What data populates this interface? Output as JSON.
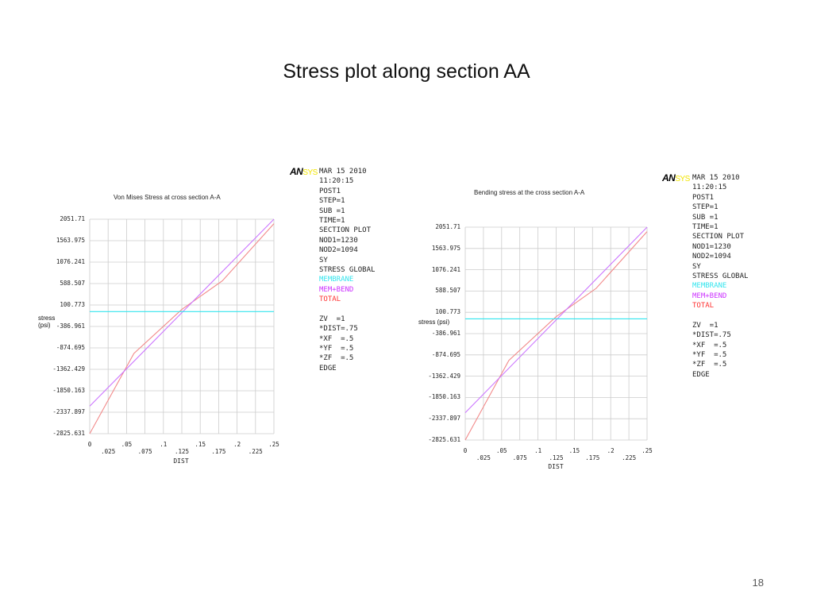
{
  "slide": {
    "title": "Stress plot along section AA",
    "page_number": "18"
  },
  "colors": {
    "total": "#f28a8a",
    "mem_bend": "#cc77ff",
    "membrane": "#33e5ee",
    "grid": "#cccccc",
    "logo_sys": "#f2e500"
  },
  "logo": {
    "an": "AN",
    "sys": "SYS"
  },
  "info_panel": {
    "lines": [
      {
        "text": "MAR 15 2010",
        "color": "#222222"
      },
      {
        "text": "11:20:15",
        "color": "#222222"
      },
      {
        "text": "POST1",
        "color": "#222222"
      },
      {
        "text": "STEP=1",
        "color": "#222222"
      },
      {
        "text": "SUB =1",
        "color": "#222222"
      },
      {
        "text": "TIME=1",
        "color": "#222222"
      },
      {
        "text": "SECTION PLOT",
        "color": "#222222"
      },
      {
        "text": "NOD1=1230",
        "color": "#222222"
      },
      {
        "text": "NOD2=1094",
        "color": "#222222"
      },
      {
        "text": "SY",
        "color": "#222222"
      },
      {
        "text": "STRESS GLOBAL",
        "color": "#222222"
      },
      {
        "text": "MEMBRANE",
        "color": "#33e5ee"
      },
      {
        "text": "MEM+BEND",
        "color": "#cc33ff"
      },
      {
        "text": "TOTAL",
        "color": "#ff3333"
      },
      {
        "text": "",
        "color": "#222222"
      },
      {
        "text": "ZV  =1",
        "color": "#222222"
      },
      {
        "text": "*DIST=.75",
        "color": "#222222"
      },
      {
        "text": "*XF  =.5",
        "color": "#222222"
      },
      {
        "text": "*YF  =.5",
        "color": "#222222"
      },
      {
        "text": "*ZF  =.5",
        "color": "#222222"
      },
      {
        "text": "EDGE",
        "color": "#222222"
      }
    ]
  },
  "chart_data": [
    {
      "type": "line",
      "title": "Von Mises Stress at cross section A-A",
      "xlabel": "DIST",
      "ylabel": "stress (psi)",
      "xlim": [
        0,
        0.25
      ],
      "ylim": [
        -2825.631,
        2051.71
      ],
      "grid": true,
      "x_ticks": [
        "0",
        ".025",
        ".05",
        ".075",
        ".1",
        ".125",
        ".15",
        ".175",
        ".2",
        ".225",
        ".25"
      ],
      "y_ticks": [
        "2051.71",
        "1563.975",
        "1076.241",
        "588.507",
        "100.773",
        "-386.961",
        "-874.695",
        "-1362.429",
        "-1850.163",
        "-2337.897",
        "-2825.631"
      ],
      "series": [
        {
          "name": "TOTAL",
          "color": "#f28a8a",
          "x": [
            0,
            0.06,
            0.125,
            0.18,
            0.25
          ],
          "y": [
            -2825.631,
            -1000,
            0,
            650,
            1950
          ]
        },
        {
          "name": "MEM+BEND",
          "color": "#cc77ff",
          "x": [
            0,
            0.25
          ],
          "y": [
            -2200,
            2051.71
          ]
        },
        {
          "name": "MEMBRANE",
          "color": "#33e5ee",
          "x": [
            0,
            0.25
          ],
          "y": [
            -50,
            -50
          ]
        }
      ]
    },
    {
      "type": "line",
      "title": "Bending stress at the cross section A-A",
      "xlabel": "DIST",
      "ylabel": "stress (psi)",
      "xlim": [
        0,
        0.25
      ],
      "ylim": [
        -2825.631,
        2051.71
      ],
      "grid": true,
      "x_ticks": [
        "0",
        ".025",
        ".05",
        ".075",
        ".1",
        ".125",
        ".15",
        ".175",
        ".2",
        ".225",
        ".25"
      ],
      "y_ticks": [
        "2051.71",
        "1563.975",
        "1076.241",
        "588.507",
        "100.773",
        "-386.961",
        "-874.695",
        "-1362.429",
        "-1850.163",
        "-2337.897",
        "-2825.631"
      ],
      "series": [
        {
          "name": "TOTAL",
          "color": "#f28a8a",
          "x": [
            0,
            0.06,
            0.125,
            0.18,
            0.25
          ],
          "y": [
            -2825.631,
            -1000,
            0,
            650,
            1950
          ]
        },
        {
          "name": "MEM+BEND",
          "color": "#cc77ff",
          "x": [
            0,
            0.25
          ],
          "y": [
            -2200,
            2051.71
          ]
        },
        {
          "name": "MEMBRANE",
          "color": "#33e5ee",
          "x": [
            0,
            0.25
          ],
          "y": [
            -50,
            -50
          ]
        }
      ]
    }
  ]
}
